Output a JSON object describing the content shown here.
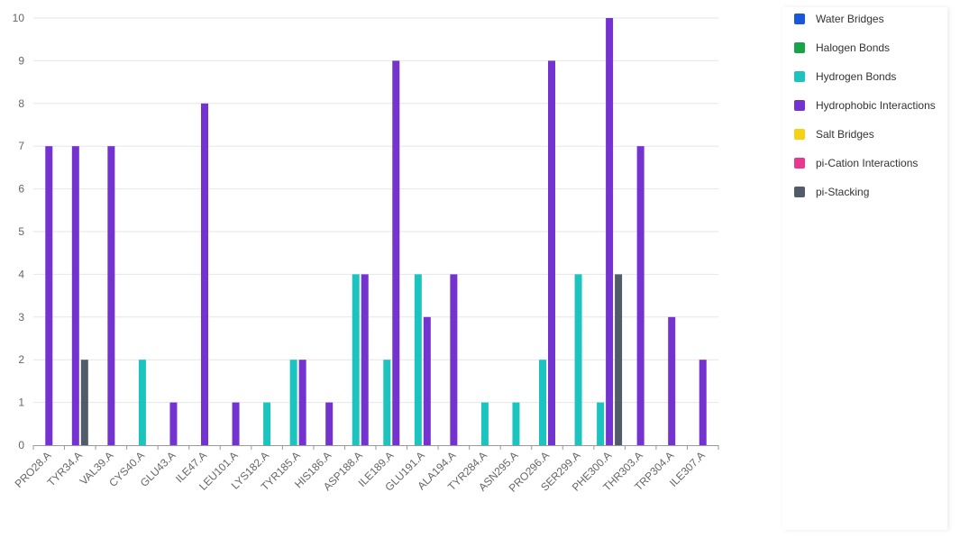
{
  "chart_data": {
    "type": "bar",
    "categories": [
      "PRO28.A",
      "TYR34.A",
      "VAL39.A",
      "CYS40.A",
      "GLU43.A",
      "ILE47.A",
      "LEU101.A",
      "LYS182.A",
      "TYR185.A",
      "HIS186.A",
      "ASP188.A",
      "ILE189.A",
      "GLU191.A",
      "ALA194.A",
      "TYR284.A",
      "ASN295.A",
      "PRO296.A",
      "SER299.A",
      "PHE300.A",
      "THR303.A",
      "TRP304.A",
      "ILE307.A"
    ],
    "ylim": [
      0,
      10
    ],
    "yticks": [
      "0",
      "1",
      "2",
      "3",
      "4",
      "5",
      "6",
      "7",
      "8",
      "9",
      "10"
    ],
    "grid": true,
    "legend_position": "right",
    "series": [
      {
        "name": "Water Bridges",
        "color": "#1a56db",
        "values": [
          0,
          0,
          0,
          0,
          0,
          0,
          0,
          0,
          0,
          0,
          0,
          0,
          0,
          0,
          0,
          0,
          0,
          0,
          0,
          0,
          0,
          0
        ]
      },
      {
        "name": "Halogen Bonds",
        "color": "#16a34a",
        "values": [
          0,
          0,
          0,
          0,
          0,
          0,
          0,
          0,
          0,
          0,
          0,
          0,
          0,
          0,
          0,
          0,
          0,
          0,
          0,
          0,
          0,
          0
        ]
      },
      {
        "name": "Hydrogen Bonds",
        "color": "#1cc4bf",
        "values": [
          0,
          0,
          0,
          2,
          0,
          0,
          0,
          1,
          2,
          0,
          4,
          2,
          4,
          0,
          1,
          1,
          2,
          4,
          1,
          0,
          0,
          0
        ]
      },
      {
        "name": "Hydrophobic Interactions",
        "color": "#7432d0",
        "values": [
          7,
          7,
          7,
          0,
          1,
          8,
          1,
          0,
          2,
          1,
          4,
          9,
          3,
          4,
          0,
          0,
          9,
          0,
          10,
          7,
          3,
          2
        ]
      },
      {
        "name": "Salt Bridges",
        "color": "#f5d314",
        "values": [
          0,
          0,
          0,
          0,
          0,
          0,
          0,
          0,
          0,
          0,
          0,
          0,
          0,
          0,
          0,
          0,
          0,
          0,
          0,
          0,
          0,
          0
        ]
      },
      {
        "name": "pi-Cation Interactions",
        "color": "#e8388f",
        "values": [
          0,
          0,
          0,
          0,
          0,
          0,
          0,
          0,
          0,
          0,
          0,
          0,
          0,
          0,
          0,
          0,
          0,
          0,
          0,
          0,
          0,
          0
        ]
      },
      {
        "name": "pi-Stacking",
        "color": "#525b69",
        "values": [
          0,
          2,
          0,
          0,
          0,
          0,
          0,
          0,
          0,
          0,
          0,
          0,
          0,
          0,
          0,
          0,
          0,
          0,
          4,
          0,
          0,
          0
        ]
      }
    ]
  }
}
